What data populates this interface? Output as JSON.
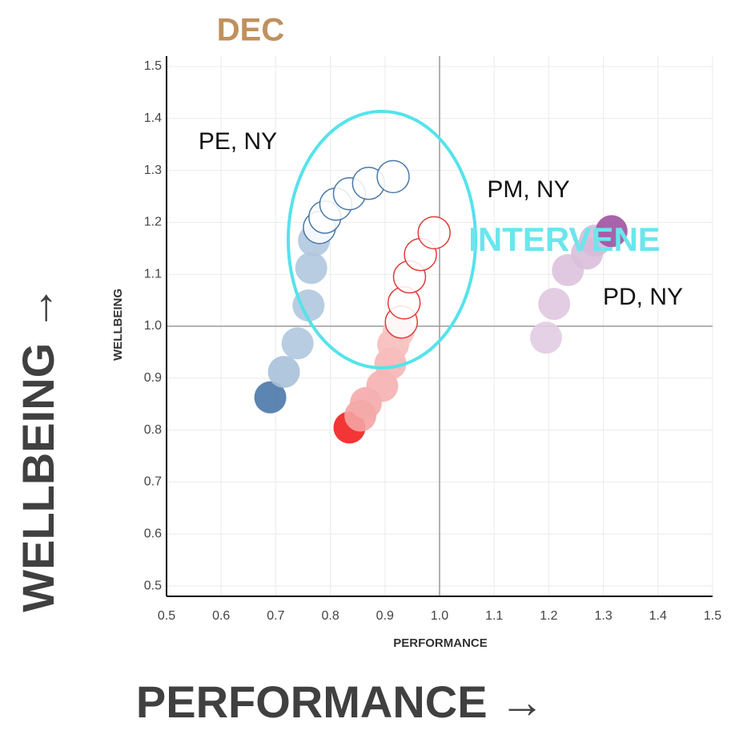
{
  "chart_data": {
    "type": "scatter",
    "title": "DEC",
    "x_label": "PERFORMANCE",
    "y_label": "WELLBEING",
    "x_caption": "PERFORMANCE →",
    "y_caption": "WELLBEING →",
    "annotation": "INTERVENE",
    "xlim": [
      0.5,
      1.5
    ],
    "ylim": [
      0.48,
      1.52
    ],
    "xticks": [
      0.5,
      0.6,
      0.7,
      0.8,
      0.9,
      {
        "value": 1.0,
        "label": "1.0"
      },
      1.1,
      1.2,
      1.3,
      1.4,
      1.5
    ],
    "yticks": [
      0.5,
      0.6,
      0.7,
      0.8,
      0.9,
      {
        "value": 1.0,
        "label": "1.0"
      },
      1.1,
      1.2,
      1.3,
      1.4,
      1.5
    ],
    "reference_x": 1.0,
    "reference_y": 1.0,
    "grid": true,
    "series": [
      {
        "name": "PE, NY",
        "color": "#4a78a8",
        "x": [
          0.69,
          0.715,
          0.74,
          0.76,
          0.765,
          0.77,
          0.78,
          0.79,
          0.81,
          0.835,
          0.87,
          0.915
        ],
        "values": [
          0.863,
          0.912,
          0.967,
          1.04,
          1.112,
          1.165,
          1.19,
          1.21,
          1.235,
          1.255,
          1.275,
          1.288
        ],
        "colors": [
          "#4a78a8",
          "#a7c1da",
          "#b0c8df",
          "#b0c8df",
          "#b0c8df",
          "#b0c8df",
          "#ffffff",
          "#ffffff",
          "#ffffff",
          "#ffffff",
          "#ffffff",
          "#ffffff"
        ]
      },
      {
        "name": "PM, NY",
        "color": "#e33b3b",
        "x": [
          0.835,
          0.855,
          0.865,
          0.895,
          0.91,
          0.915,
          0.925,
          0.93,
          0.935,
          0.945,
          0.965,
          0.99
        ],
        "values": [
          0.805,
          0.828,
          0.852,
          0.885,
          0.928,
          0.965,
          0.99,
          1.008,
          1.045,
          1.095,
          1.138,
          1.18
        ],
        "colors": [
          "#f21f1f",
          "#f5a3a3",
          "#f5aaaa",
          "#f5b0b0",
          "#f6b6b6",
          "#f7bcbc",
          "#f8c4c4",
          "#ffffff",
          "#ffffff",
          "#ffffff",
          "#ffffff",
          "#ffffff"
        ]
      },
      {
        "name": "PD, NY",
        "color": "#a052a0",
        "x": [
          1.195,
          1.21,
          1.235,
          1.27,
          1.285,
          1.315
        ],
        "values": [
          0.978,
          1.043,
          1.108,
          1.14,
          1.165,
          1.183
        ],
        "colors": [
          "#e2cce2",
          "#e0c8e0",
          "#ddc3dd",
          "#dabeda",
          "#d8bad8",
          "#a052a0"
        ]
      }
    ]
  }
}
